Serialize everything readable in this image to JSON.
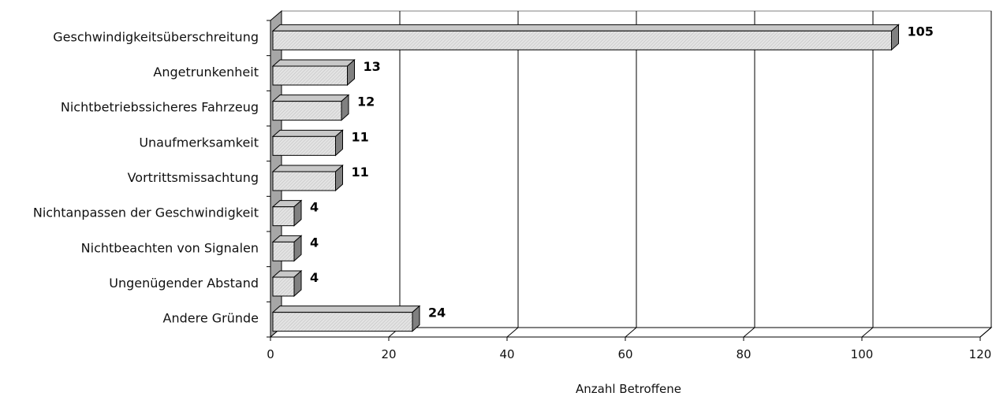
{
  "chart_data": {
    "type": "bar",
    "orientation": "horizontal",
    "categories": [
      "Geschwindigkeitsüberschreitung",
      "Angetrunkenheit",
      "Nichtbetriebssicheres Fahrzeug",
      "Unaufmerksamkeit",
      "Vortrittsmissachtung",
      "Nichtanpassen der Geschwindigkeit",
      "Nichtbeachten von Signalen",
      "Ungenügender Abstand",
      "Andere Gründe"
    ],
    "values": [
      105,
      13,
      12,
      11,
      11,
      4,
      4,
      4,
      24
    ],
    "value_labels": [
      "105",
      "13",
      "12",
      "11",
      "11",
      "4",
      "4",
      "4",
      "24"
    ],
    "xlabel": "Anzahl Betroffene",
    "ylabel": "",
    "xlim": [
      0,
      120
    ],
    "xticks": [
      "0",
      "20",
      "40",
      "60",
      "80",
      "100",
      "120"
    ],
    "grid": "vertical",
    "legend": "none",
    "style": "3d",
    "colors": {
      "bar_front": "#d9d9d9",
      "bar_top": "#c8c8c8",
      "bar_side": "#808080",
      "wall": "#a6a6a6",
      "grid": "#000000"
    }
  }
}
